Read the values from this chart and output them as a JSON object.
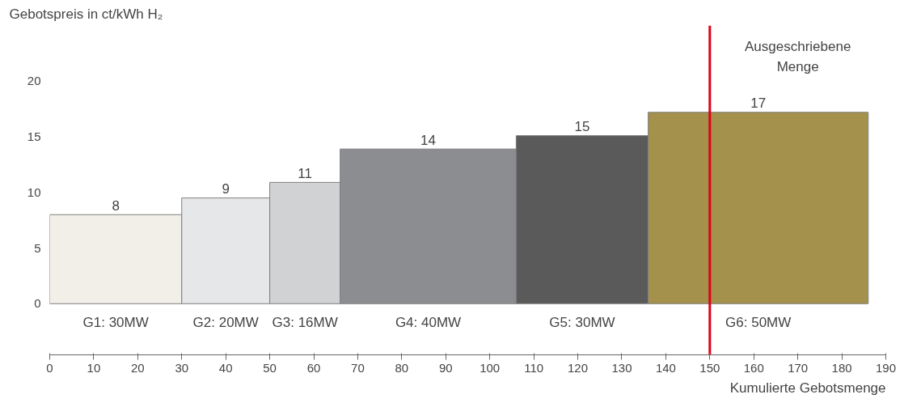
{
  "chart_data": {
    "type": "bar",
    "ylabel": "Gebotspreis in ct/kWh H₂",
    "xlabel": "Kumulierte Gebotsmenge",
    "x": [
      15,
      40,
      58,
      86,
      121,
      161
    ],
    "values": [
      8,
      9.5,
      10.9,
      13.9,
      15.1,
      17.2
    ],
    "value_labels": [
      "8",
      "9",
      "11",
      "14",
      "15",
      "17"
    ],
    "colors": [
      "#f2efe8",
      "#e6e7e9",
      "#d1d2d4",
      "#8c8d90",
      "#5a5a5b",
      "#a4914c"
    ],
    "xlim": [
      0,
      190
    ],
    "xticks": [
      0,
      10,
      20,
      30,
      40,
      50,
      60,
      70,
      80,
      90,
      100,
      110,
      120,
      130,
      140,
      150,
      160,
      170,
      180,
      190
    ],
    "ylim": [
      -4.6,
      25
    ],
    "yticks": [
      0,
      5,
      10,
      15,
      20
    ],
    "grid": false,
    "ref_lines": [
      {
        "axis": "x",
        "value": 150,
        "label": "Ausgeschriebene\nMenge",
        "color": "#e2001a"
      }
    ],
    "annotations": [
      "G1: 30MW",
      "G2: 20MW",
      "G3: 16MW",
      "G4: 40MW",
      "G5: 30MW",
      "G6: 50MW"
    ]
  }
}
